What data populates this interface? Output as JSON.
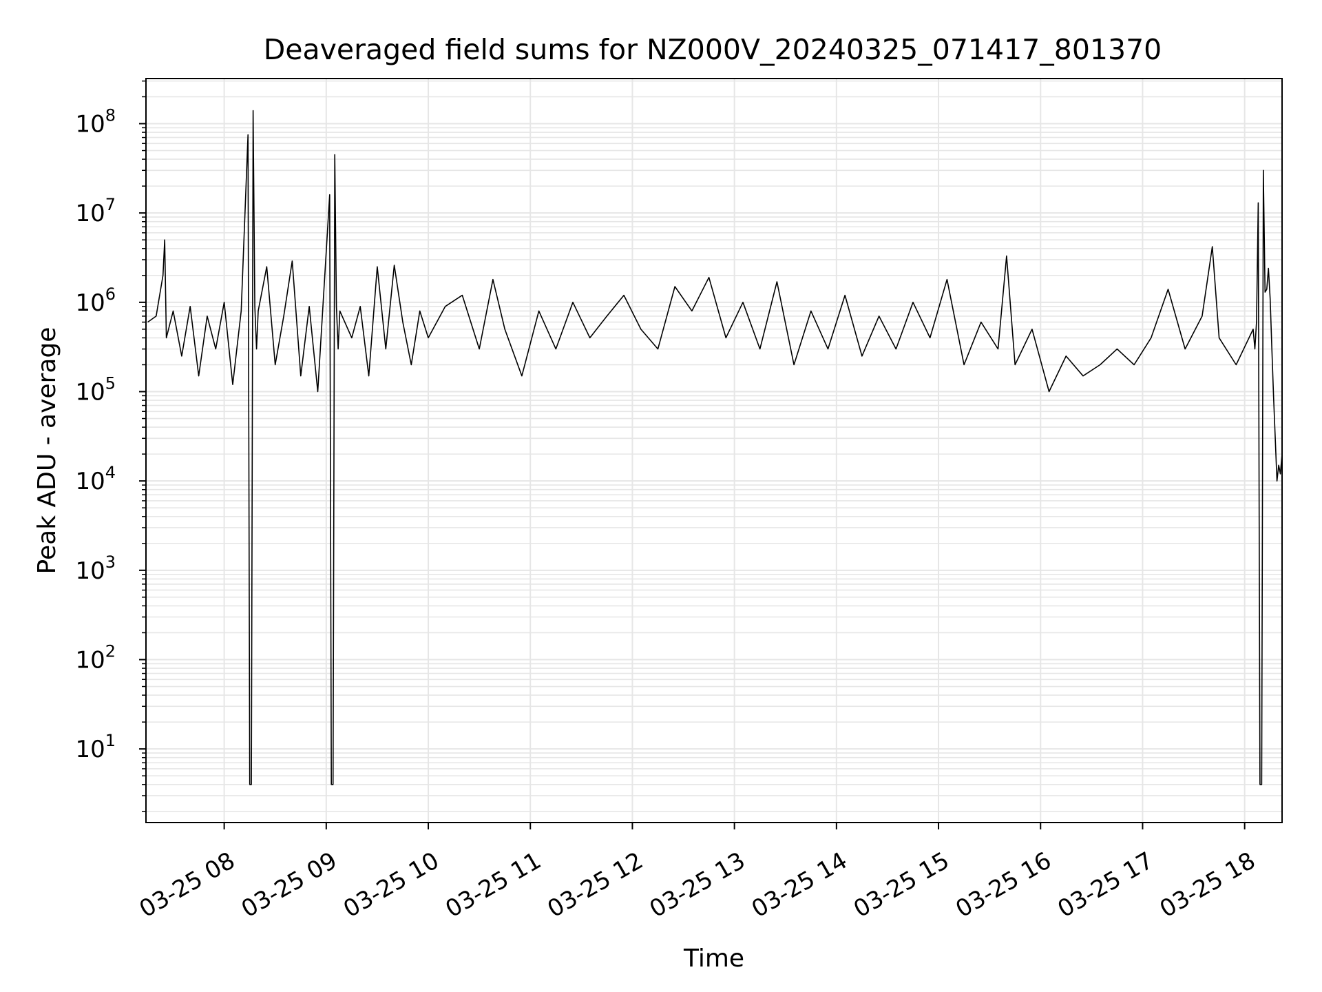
{
  "chart_data": {
    "type": "line",
    "title": "Deaveraged field sums for NZ000V_20240325_071417_801370",
    "xlabel": "Time",
    "ylabel": "Peak ADU - average",
    "yscale": "log",
    "grid": true,
    "legend": "none",
    "line_color": "#000000",
    "grid_color": "#e6e6e6",
    "xlim": [
      "2024-03-25 07:14",
      "2024-03-25 18:22"
    ],
    "ylim": [
      1.5,
      320000000
    ],
    "x_ticks": [
      "2024-03-25 08:00",
      "2024-03-25 09:00",
      "2024-03-25 10:00",
      "2024-03-25 11:00",
      "2024-03-25 12:00",
      "2024-03-25 13:00",
      "2024-03-25 14:00",
      "2024-03-25 15:00",
      "2024-03-25 16:00",
      "2024-03-25 17:00",
      "2024-03-25 18:00"
    ],
    "x_tick_labels": [
      "03-25 08",
      "03-25 09",
      "03-25 10",
      "03-25 11",
      "03-25 12",
      "03-25 13",
      "03-25 14",
      "03-25 15",
      "03-25 16",
      "03-25 17",
      "03-25 18"
    ],
    "y_ticks": [
      10,
      100,
      1000,
      10000,
      100000,
      1000000,
      10000000,
      100000000
    ],
    "y_tick_labels": [
      {
        "base": "10",
        "exp": "1"
      },
      {
        "base": "10",
        "exp": "2"
      },
      {
        "base": "10",
        "exp": "3"
      },
      {
        "base": "10",
        "exp": "4"
      },
      {
        "base": "10",
        "exp": "5"
      },
      {
        "base": "10",
        "exp": "6"
      },
      {
        "base": "10",
        "exp": "7"
      },
      {
        "base": "10",
        "exp": "8"
      }
    ],
    "series": [
      {
        "x": [
          "2024-03-25 07:15",
          "2024-03-25 07:20",
          "2024-03-25 07:24",
          "2024-03-25 07:25",
          "2024-03-25 07:26",
          "2024-03-25 07:30",
          "2024-03-25 07:35",
          "2024-03-25 07:40",
          "2024-03-25 07:45",
          "2024-03-25 07:50",
          "2024-03-25 07:55",
          "2024-03-25 08:00",
          "2024-03-25 08:05",
          "2024-03-25 08:10",
          "2024-03-25 08:14",
          "2024-03-25 08:15",
          "2024-03-25 08:16",
          "2024-03-25 08:17",
          "2024-03-25 08:18",
          "2024-03-25 08:19",
          "2024-03-25 08:20",
          "2024-03-25 08:25",
          "2024-03-25 08:30",
          "2024-03-25 08:35",
          "2024-03-25 08:40",
          "2024-03-25 08:45",
          "2024-03-25 08:50",
          "2024-03-25 08:55",
          "2024-03-25 09:02",
          "2024-03-25 09:03",
          "2024-03-25 09:04",
          "2024-03-25 09:05",
          "2024-03-25 09:06",
          "2024-03-25 09:07",
          "2024-03-25 09:08",
          "2024-03-25 09:15",
          "2024-03-25 09:20",
          "2024-03-25 09:25",
          "2024-03-25 09:30",
          "2024-03-25 09:35",
          "2024-03-25 09:40",
          "2024-03-25 09:45",
          "2024-03-25 09:50",
          "2024-03-25 09:55",
          "2024-03-25 10:00",
          "2024-03-25 10:10",
          "2024-03-25 10:20",
          "2024-03-25 10:30",
          "2024-03-25 10:38",
          "2024-03-25 10:45",
          "2024-03-25 10:55",
          "2024-03-25 11:05",
          "2024-03-25 11:15",
          "2024-03-25 11:25",
          "2024-03-25 11:35",
          "2024-03-25 11:45",
          "2024-03-25 11:55",
          "2024-03-25 12:05",
          "2024-03-25 12:15",
          "2024-03-25 12:25",
          "2024-03-25 12:35",
          "2024-03-25 12:45",
          "2024-03-25 12:55",
          "2024-03-25 13:05",
          "2024-03-25 13:15",
          "2024-03-25 13:25",
          "2024-03-25 13:35",
          "2024-03-25 13:45",
          "2024-03-25 13:55",
          "2024-03-25 14:05",
          "2024-03-25 14:15",
          "2024-03-25 14:25",
          "2024-03-25 14:35",
          "2024-03-25 14:45",
          "2024-03-25 14:55",
          "2024-03-25 15:05",
          "2024-03-25 15:15",
          "2024-03-25 15:25",
          "2024-03-25 15:35",
          "2024-03-25 15:40",
          "2024-03-25 15:45",
          "2024-03-25 15:55",
          "2024-03-25 16:05",
          "2024-03-25 16:15",
          "2024-03-25 16:25",
          "2024-03-25 16:35",
          "2024-03-25 16:45",
          "2024-03-25 16:55",
          "2024-03-25 17:05",
          "2024-03-25 17:15",
          "2024-03-25 17:25",
          "2024-03-25 17:35",
          "2024-03-25 17:41",
          "2024-03-25 17:45",
          "2024-03-25 17:55",
          "2024-03-25 18:05",
          "2024-03-25 18:06",
          "2024-03-25 18:07",
          "2024-03-25 18:08",
          "2024-03-25 18:09",
          "2024-03-25 18:10",
          "2024-03-25 18:11",
          "2024-03-25 18:12",
          "2024-03-25 18:13",
          "2024-03-25 18:14",
          "2024-03-25 18:15",
          "2024-03-25 18:16",
          "2024-03-25 18:17",
          "2024-03-25 18:18",
          "2024-03-25 18:19",
          "2024-03-25 18:20",
          "2024-03-25 18:21",
          "2024-03-25 18:22"
        ],
        "y": [
          600000,
          700000,
          2000000,
          5000000,
          400000,
          800000,
          250000,
          900000,
          150000,
          700000,
          300000,
          1000000,
          120000,
          800000,
          75000000,
          4,
          4,
          140000000,
          900000,
          300000,
          800000,
          2500000,
          200000,
          700000,
          2900000,
          150000,
          900000,
          100000,
          16000000,
          4,
          4,
          45000000,
          900000,
          300000,
          800000,
          400000,
          900000,
          150000,
          2500000,
          300000,
          2600000,
          600000,
          200000,
          800000,
          400000,
          900000,
          1200000,
          300000,
          1800000,
          500000,
          150000,
          800000,
          300000,
          1000000,
          400000,
          700000,
          1200000,
          500000,
          300000,
          1500000,
          800000,
          1900000,
          400000,
          1000000,
          300000,
          1700000,
          200000,
          800000,
          300000,
          1200000,
          250000,
          700000,
          300000,
          1000000,
          400000,
          1800000,
          200000,
          600000,
          300000,
          3300000,
          200000,
          500000,
          100000,
          250000,
          150000,
          200000,
          300000,
          200000,
          400000,
          1400000,
          300000,
          700000,
          4200000,
          400000,
          200000,
          500000,
          300000,
          600000,
          13000000,
          4,
          4,
          30000000,
          1300000,
          1400000,
          2400000,
          1100000,
          300000,
          90000,
          30000,
          10000,
          15000,
          12000,
          20000
        ]
      }
    ]
  }
}
